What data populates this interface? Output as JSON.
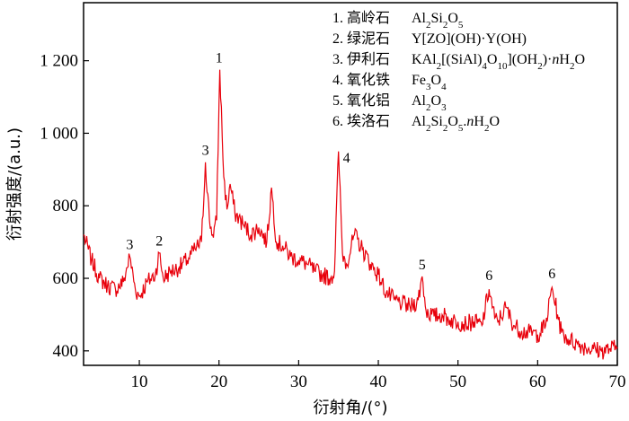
{
  "chart_data": {
    "type": "line",
    "xlabel": "衍射角/(°)",
    "ylabel": "衍射强度/(a.u.)",
    "xlim": [
      3,
      70
    ],
    "ylim": [
      360,
      1360
    ],
    "x_ticks": [
      10,
      20,
      30,
      40,
      50,
      60,
      70
    ],
    "y_ticks": [
      {
        "value": 400,
        "label": "400"
      },
      {
        "value": 600,
        "label": "600"
      },
      {
        "value": 800,
        "label": "800"
      },
      {
        "value": 1000,
        "label": "1 000"
      },
      {
        "value": 1200,
        "label": "1 200"
      }
    ],
    "line_color": "#e8000b",
    "series": [
      {
        "x": [
          3,
          4,
          5,
          6,
          7,
          8,
          8.8,
          9.5,
          10,
          11,
          12,
          12.5,
          13,
          14,
          15,
          16,
          17,
          17.8,
          18.3,
          18.8,
          19.2,
          19.7,
          20.1,
          20.6,
          21,
          21.4,
          22,
          23,
          24,
          25,
          26,
          26.6,
          27.2,
          28,
          29,
          30,
          31,
          32,
          33,
          34,
          34.5,
          35,
          35.5,
          36,
          37,
          38,
          39,
          40,
          41,
          42,
          43,
          44,
          45,
          45.5,
          46,
          47,
          48,
          49,
          50,
          51,
          52,
          53,
          53.9,
          54.6,
          55,
          56,
          57,
          58,
          59,
          60,
          61,
          61.8,
          62.5,
          63,
          64,
          65,
          66,
          67,
          68,
          69,
          70
        ],
        "y": [
          720,
          650,
          600,
          580,
          570,
          590,
          660,
          570,
          550,
          590,
          610,
          670,
          600,
          620,
          630,
          650,
          680,
          700,
          920,
          760,
          720,
          760,
          1175,
          880,
          790,
          860,
          780,
          750,
          720,
          740,
          700,
          850,
          700,
          690,
          660,
          650,
          640,
          620,
          610,
          600,
          620,
          950,
          670,
          640,
          720,
          680,
          640,
          610,
          560,
          540,
          530,
          520,
          540,
          605,
          510,
          495,
          500,
          485,
          480,
          475,
          480,
          470,
          570,
          490,
          480,
          520,
          470,
          455,
          450,
          445,
          470,
          575,
          500,
          450,
          430,
          420,
          410,
          405,
          400,
          405,
          410
        ]
      }
    ],
    "peak_labels": [
      {
        "text": "3",
        "x": 8.8,
        "y": 680
      },
      {
        "text": "2",
        "x": 12.5,
        "y": 690
      },
      {
        "text": "3",
        "x": 18.3,
        "y": 940
      },
      {
        "text": "1",
        "x": 20.0,
        "y": 1195
      },
      {
        "text": "4",
        "x": 36.0,
        "y": 920
      },
      {
        "text": "5",
        "x": 45.5,
        "y": 625
      },
      {
        "text": "6",
        "x": 53.9,
        "y": 595
      },
      {
        "text": "6",
        "x": 61.8,
        "y": 600
      }
    ],
    "legend": {
      "placement": "top-right",
      "entries": [
        {
          "id": "1",
          "name": "高岭石",
          "formula": "Al2Si2O5"
        },
        {
          "id": "2",
          "name": "绿泥石",
          "formula": "Y[ZO](OH)·Y(OH)"
        },
        {
          "id": "3",
          "name": "伊利石",
          "formula": "KAl2[(SiAl)4O10](OH2)·nH2O"
        },
        {
          "id": "4",
          "name": "氧化铁",
          "formula": "Fe3O4"
        },
        {
          "id": "5",
          "name": "氧化铝",
          "formula": "Al2O3"
        },
        {
          "id": "6",
          "name": "埃洛石",
          "formula": "Al2Si2O5.nH2O"
        }
      ]
    }
  }
}
